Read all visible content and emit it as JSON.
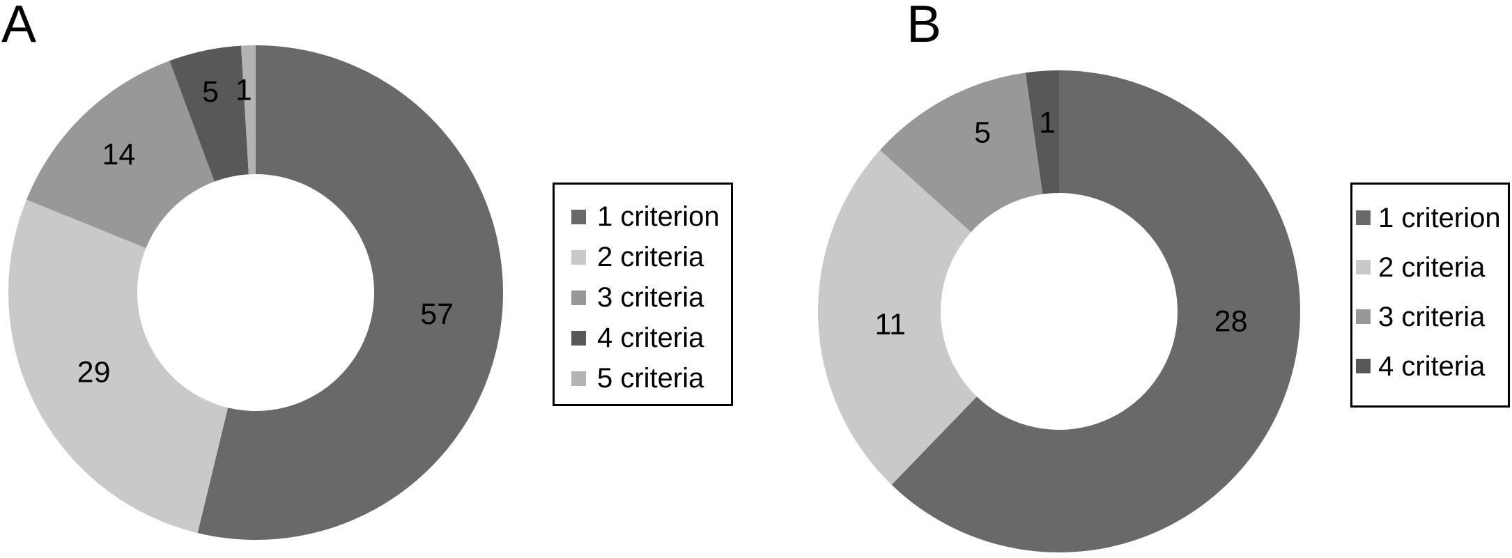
{
  "figure": {
    "background_color": "#ffffff",
    "text_color": "#000000",
    "legend_border_color": "#000000"
  },
  "chart_data": [
    {
      "panel_label": "A",
      "type": "pie",
      "subtype": "donut",
      "start_angle_deg": 0,
      "direction": "clockwise",
      "total": 106,
      "categories": [
        "1 criterion",
        "2 criteria",
        "3 criteria",
        "4 criteria",
        "5 criteria"
      ],
      "values": [
        57,
        29,
        14,
        5,
        1
      ],
      "slice_labels": [
        "57",
        "29",
        "14",
        "5",
        "1"
      ],
      "colors": [
        "#696969",
        "#c9c9c9",
        "#989898",
        "#585858",
        "#b3b3b3"
      ],
      "legend_position": "right",
      "legend_entries": [
        {
          "label": "1 criterion",
          "color": "#696969"
        },
        {
          "label": "2 criteria",
          "color": "#c9c9c9"
        },
        {
          "label": "3 criteria",
          "color": "#989898"
        },
        {
          "label": "4 criteria",
          "color": "#585858"
        },
        {
          "label": "5 criteria",
          "color": "#b3b3b3"
        }
      ]
    },
    {
      "panel_label": "B",
      "type": "pie",
      "subtype": "donut",
      "start_angle_deg": 0,
      "direction": "clockwise",
      "total": 45,
      "categories": [
        "1 criterion",
        "2 criteria",
        "3 criteria",
        "4 criteria"
      ],
      "values": [
        28,
        11,
        5,
        1
      ],
      "slice_labels": [
        "28",
        "11",
        "5",
        "1"
      ],
      "colors": [
        "#696969",
        "#c9c9c9",
        "#989898",
        "#585858"
      ],
      "legend_position": "right",
      "legend_entries": [
        {
          "label": "1 criterion",
          "color": "#696969"
        },
        {
          "label": "2 criteria",
          "color": "#c9c9c9"
        },
        {
          "label": "3 criteria",
          "color": "#989898"
        },
        {
          "label": "4 criteria",
          "color": "#585858"
        }
      ]
    }
  ]
}
